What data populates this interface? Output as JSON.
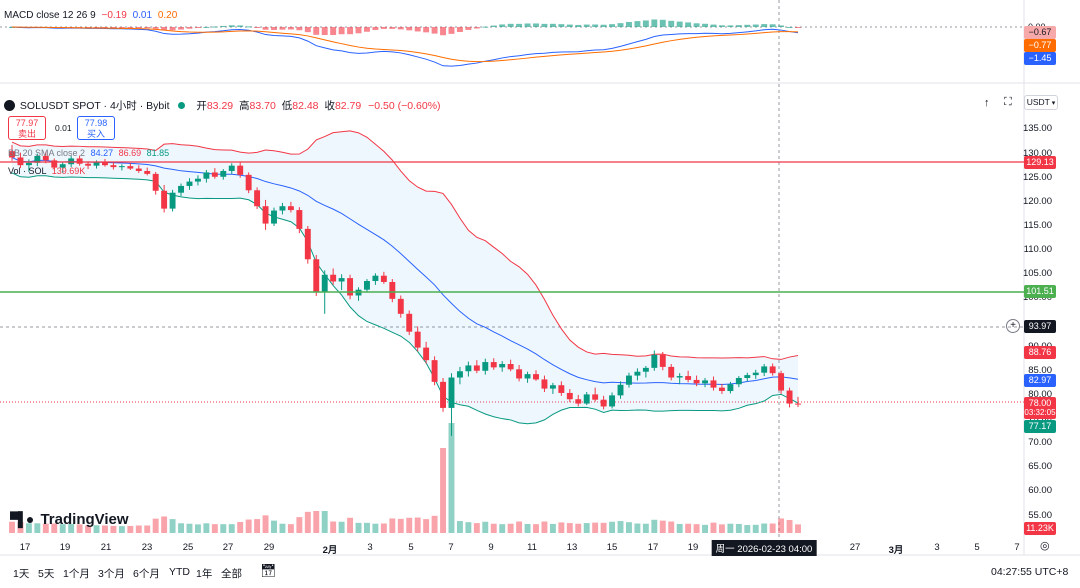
{
  "macd": {
    "title": "MACD close 12 26 9",
    "values": [
      "−0.19",
      "0.01",
      "0.20"
    ],
    "scale_top": "0.00",
    "tags": [
      "−0.67",
      "−0.77",
      "−1.45"
    ]
  },
  "symbol": {
    "name": "SOLUSDT SPOT · 4小时 · Bybit",
    "open_label": "开",
    "open": "83.29",
    "high_label": "高",
    "high": "83.70",
    "low_label": "低",
    "low": "82.48",
    "close_label": "收",
    "close": "82.79",
    "change": "−0.50 (−0.60%)"
  },
  "trade": {
    "sell_price": "77.97",
    "sell_label": "卖出",
    "spread": "0.01",
    "buy_price": "77.98",
    "buy_label": "买入"
  },
  "bb": {
    "label": "BB 20 SMA close 2",
    "basis": "84.27",
    "upper": "86.69",
    "lower": "81.85"
  },
  "vol": {
    "label": "Vol · SOL",
    "value": "139.69K"
  },
  "currency": "USDT",
  "price_axis": [
    "135.00",
    "130.00",
    "125.00",
    "120.00",
    "115.00",
    "110.00",
    "105.00",
    "100.00",
    "90.00",
    "85.00",
    "80.00",
    "75.00",
    "70.00",
    "65.00",
    "60.00",
    "55.00"
  ],
  "price_tags": {
    "red_line": "129.13",
    "green_line": "101.51",
    "crosshair": "93.97",
    "bb_upper": "88.76",
    "bb_basis": "82.97",
    "last": "78.00",
    "countdown": "03:32:05",
    "bb_lower": "77.17",
    "volume": "11.23K"
  },
  "time_axis": [
    "17",
    "19",
    "21",
    "23",
    "25",
    "27",
    "29",
    "2月",
    "3",
    "5",
    "7",
    "9",
    "11",
    "13",
    "15",
    "17",
    "19",
    "周一 2026-02-23 04:00",
    "27",
    "3月",
    "3",
    "5",
    "7"
  ],
  "ranges": [
    "1天",
    "5天",
    "1个月",
    "3个月",
    "6个月",
    "YTD",
    "1年",
    "全部"
  ],
  "clock": "04:27:55 UTC+8",
  "logo": "TradingView",
  "colors": {
    "up": "#089981",
    "down": "#f23645",
    "red_line": "#f23645",
    "green_line": "#4caf50",
    "bb_upper": "#f23645",
    "bb_basis": "#2962ff",
    "bb_lower": "#089981"
  },
  "chart_data": {
    "type": "candlestick",
    "candles": [
      [
        130.5,
        131.8,
        128.5,
        129.2
      ],
      [
        129.2,
        130.2,
        127.0,
        127.6
      ],
      [
        127.6,
        128.8,
        126.2,
        128.1
      ],
      [
        128.1,
        130.0,
        127.4,
        129.5
      ],
      [
        129.5,
        130.4,
        128.0,
        128.6
      ],
      [
        128.6,
        129.0,
        126.5,
        127.1
      ],
      [
        127.1,
        128.2,
        126.0,
        127.8
      ],
      [
        127.8,
        129.5,
        127.2,
        129.0
      ],
      [
        129.0,
        129.6,
        127.5,
        127.9
      ],
      [
        127.9,
        128.4,
        126.8,
        127.5
      ],
      [
        127.5,
        128.6,
        126.9,
        128.2
      ],
      [
        128.2,
        128.9,
        127.3,
        127.6
      ],
      [
        127.6,
        128.1,
        126.7,
        127.2
      ],
      [
        127.2,
        127.8,
        126.5,
        127.4
      ],
      [
        127.4,
        128.0,
        126.6,
        126.9
      ],
      [
        126.9,
        127.6,
        126.0,
        126.4
      ],
      [
        126.4,
        127.1,
        125.5,
        125.8
      ],
      [
        125.8,
        126.2,
        121.5,
        122.3
      ],
      [
        122.3,
        123.5,
        117.8,
        118.6
      ],
      [
        118.6,
        122.5,
        118.0,
        121.9
      ],
      [
        121.9,
        123.8,
        121.2,
        123.3
      ],
      [
        123.3,
        124.9,
        122.5,
        124.2
      ],
      [
        124.2,
        125.5,
        123.4,
        124.8
      ],
      [
        124.8,
        126.6,
        124.0,
        126.1
      ],
      [
        126.1,
        127.0,
        124.8,
        125.2
      ],
      [
        125.2,
        126.8,
        124.6,
        126.4
      ],
      [
        126.4,
        128.0,
        125.8,
        127.5
      ],
      [
        127.5,
        128.2,
        125.0,
        125.6
      ],
      [
        125.6,
        126.1,
        121.8,
        122.4
      ],
      [
        122.4,
        123.0,
        118.5,
        119.1
      ],
      [
        119.1,
        120.4,
        114.2,
        115.5
      ],
      [
        115.5,
        118.8,
        115.0,
        118.2
      ],
      [
        118.2,
        119.8,
        117.4,
        119.1
      ],
      [
        119.1,
        120.0,
        117.8,
        118.3
      ],
      [
        118.3,
        118.9,
        113.5,
        114.4
      ],
      [
        114.4,
        115.0,
        107.2,
        108.1
      ],
      [
        108.1,
        109.0,
        100.5,
        101.4
      ],
      [
        101.4,
        105.8,
        96.8,
        104.9
      ],
      [
        104.9,
        106.2,
        102.8,
        103.5
      ],
      [
        103.5,
        105.0,
        101.7,
        104.2
      ],
      [
        104.2,
        104.9,
        99.8,
        100.6
      ],
      [
        100.6,
        102.3,
        99.5,
        101.8
      ],
      [
        101.8,
        104.0,
        101.2,
        103.6
      ],
      [
        103.6,
        105.2,
        102.8,
        104.7
      ],
      [
        104.7,
        105.5,
        103.0,
        103.4
      ],
      [
        103.4,
        104.0,
        99.2,
        99.9
      ],
      [
        99.9,
        100.6,
        96.0,
        96.8
      ],
      [
        96.8,
        97.5,
        92.4,
        93.1
      ],
      [
        93.1,
        94.2,
        89.0,
        89.8
      ],
      [
        89.8,
        91.0,
        86.5,
        87.2
      ],
      [
        87.2,
        88.0,
        82.0,
        82.7
      ],
      [
        82.7,
        83.5,
        76.5,
        77.3
      ],
      [
        77.3,
        84.5,
        71.5,
        83.6
      ],
      [
        83.6,
        85.8,
        82.2,
        84.9
      ],
      [
        84.9,
        86.9,
        83.8,
        86.1
      ],
      [
        86.1,
        87.2,
        84.5,
        85.0
      ],
      [
        85.0,
        87.5,
        84.2,
        86.8
      ],
      [
        86.8,
        87.6,
        85.2,
        85.7
      ],
      [
        85.7,
        87.0,
        84.8,
        86.4
      ],
      [
        86.4,
        87.3,
        84.9,
        85.3
      ],
      [
        85.3,
        86.2,
        82.8,
        83.4
      ],
      [
        83.4,
        84.8,
        82.5,
        84.3
      ],
      [
        84.3,
        85.1,
        82.9,
        83.2
      ],
      [
        83.2,
        84.0,
        80.6,
        81.3
      ],
      [
        81.3,
        82.5,
        80.2,
        82.0
      ],
      [
        82.0,
        82.8,
        79.8,
        80.4
      ],
      [
        80.4,
        81.2,
        78.5,
        79.1
      ],
      [
        79.1,
        80.0,
        77.6,
        78.2
      ],
      [
        78.2,
        80.6,
        77.9,
        80.1
      ],
      [
        80.1,
        81.5,
        78.6,
        79.0
      ],
      [
        79.0,
        79.8,
        77.0,
        77.6
      ],
      [
        77.6,
        80.5,
        77.2,
        79.9
      ],
      [
        79.9,
        82.8,
        79.2,
        82.1
      ],
      [
        82.1,
        84.6,
        81.5,
        84.0
      ],
      [
        84.0,
        85.5,
        83.0,
        84.8
      ],
      [
        84.8,
        86.0,
        83.6,
        85.6
      ],
      [
        85.6,
        89.2,
        85.0,
        88.3
      ],
      [
        88.3,
        88.9,
        85.1,
        85.8
      ],
      [
        85.8,
        86.4,
        83.0,
        83.6
      ],
      [
        83.6,
        84.5,
        82.2,
        83.9
      ],
      [
        83.9,
        85.0,
        82.6,
        83.1
      ],
      [
        83.1,
        84.0,
        81.8,
        82.4
      ],
      [
        82.4,
        83.5,
        81.6,
        83.0
      ],
      [
        83.0,
        83.8,
        80.9,
        81.5
      ],
      [
        81.5,
        82.3,
        80.2,
        80.8
      ],
      [
        80.8,
        82.7,
        80.3,
        82.2
      ],
      [
        82.2,
        83.9,
        81.6,
        83.5
      ],
      [
        83.5,
        84.6,
        82.8,
        84.1
      ],
      [
        84.1,
        85.2,
        83.3,
        84.6
      ],
      [
        84.6,
        86.4,
        83.9,
        85.9
      ],
      [
        85.9,
        86.5,
        84.0,
        84.5
      ],
      [
        84.5,
        85.0,
        80.2,
        80.9
      ],
      [
        80.9,
        81.5,
        77.4,
        78.2
      ],
      [
        78.2,
        79.6,
        77.5,
        78.0
      ]
    ],
    "ylim": [
      52,
      138
    ]
  }
}
